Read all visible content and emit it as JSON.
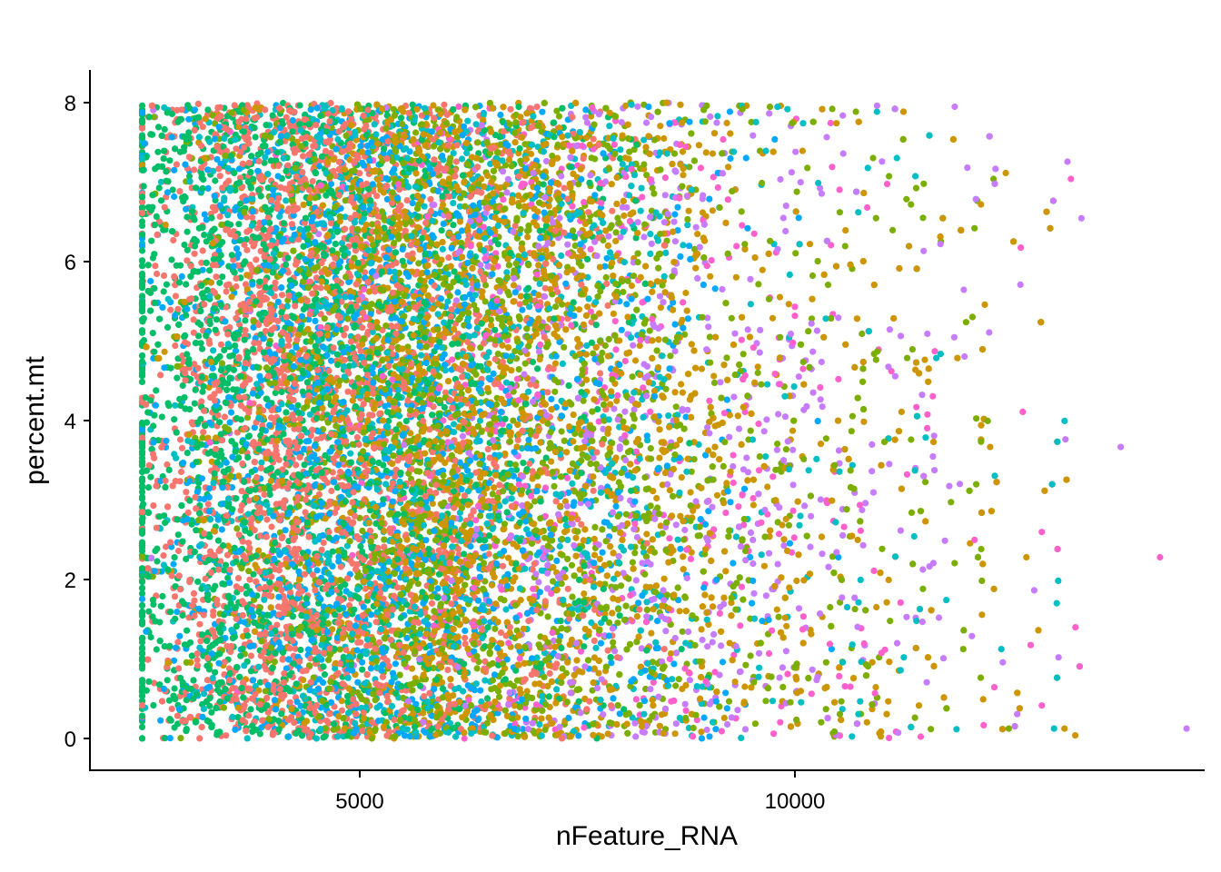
{
  "chart_data": {
    "type": "scatter",
    "title": "",
    "xlabel": "nFeature_RNA",
    "ylabel": "percent.mt",
    "xlim": [
      1800,
      14800
    ],
    "ylim": [
      -0.4,
      8.4
    ],
    "x_ticks": [
      5000,
      10000
    ],
    "x_tick_labels": [
      "5000",
      "10000"
    ],
    "y_ticks": [
      0,
      2,
      4,
      6,
      8
    ],
    "y_tick_labels": [
      "0",
      "2",
      "4",
      "6",
      "8"
    ],
    "grid": false,
    "legend": "none",
    "series_colors": [
      "#F8766D",
      "#CD9600",
      "#7CAE00",
      "#00BE67",
      "#00BFC4",
      "#00A9FF",
      "#C77CFF",
      "#FF61CC"
    ],
    "series": [
      {
        "color": "#F8766D",
        "center_x": 4300,
        "spread_x": 1400,
        "min_x": 2500,
        "max_x": 8500,
        "count": 2600
      },
      {
        "color": "#00BE67",
        "center_x": 3700,
        "spread_x": 1600,
        "min_x": 2500,
        "max_x": 9000,
        "count": 2600
      },
      {
        "color": "#00A9FF",
        "center_x": 4800,
        "spread_x": 1800,
        "min_x": 2500,
        "max_x": 10500,
        "count": 1500
      },
      {
        "color": "#00BFC4",
        "center_x": 5500,
        "spread_x": 2200,
        "min_x": 2500,
        "max_x": 14500,
        "count": 1300
      },
      {
        "color": "#7CAE00",
        "center_x": 6000,
        "spread_x": 1900,
        "min_x": 2500,
        "max_x": 13500,
        "count": 2600
      },
      {
        "color": "#C77CFF",
        "center_x": 7800,
        "spread_x": 2000,
        "min_x": 2500,
        "max_x": 14500,
        "count": 700
      },
      {
        "color": "#FF61CC",
        "center_x": 7200,
        "spread_x": 2200,
        "min_x": 2500,
        "max_x": 14500,
        "count": 450
      },
      {
        "color": "#CD9600",
        "center_x": 6300,
        "spread_x": 2000,
        "min_x": 2500,
        "max_x": 14500,
        "count": 3200
      }
    ]
  }
}
